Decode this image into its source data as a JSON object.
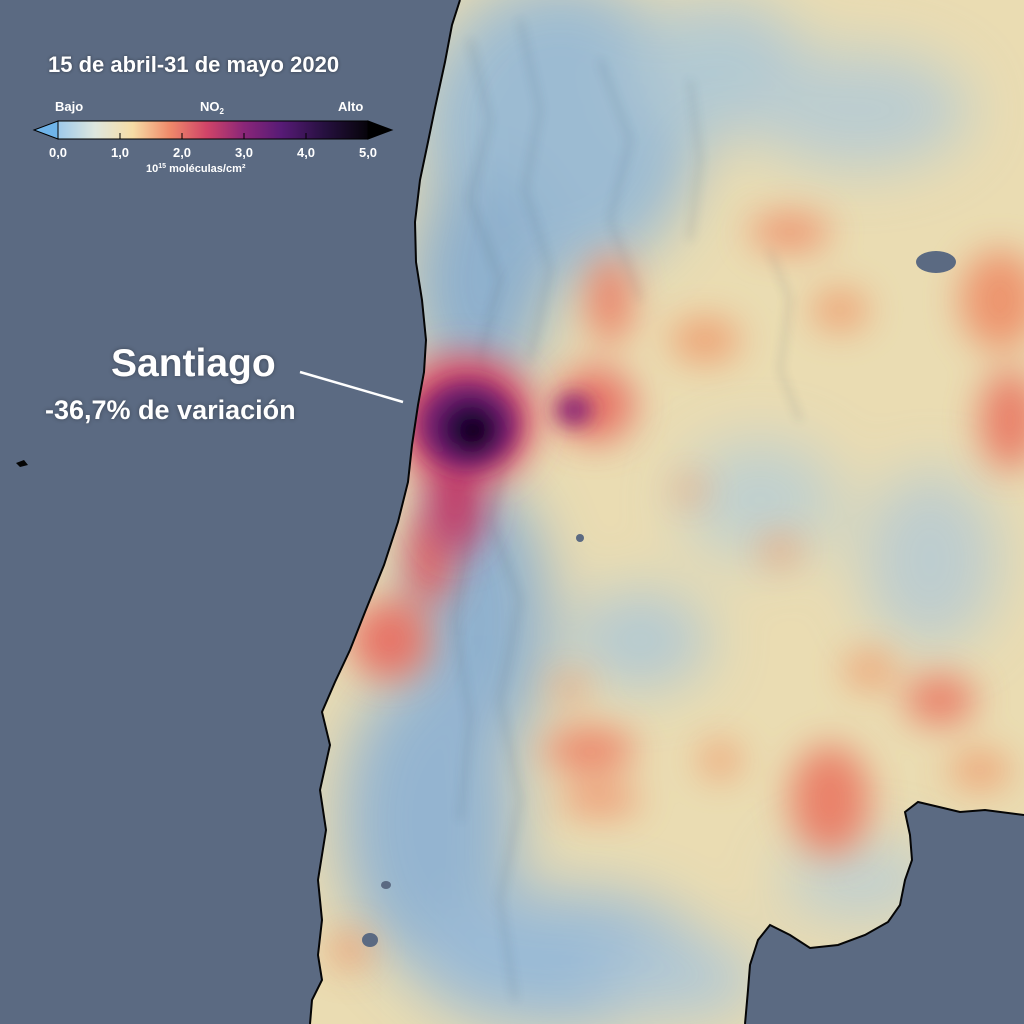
{
  "title": "15 de abril-31 de mayo 2020",
  "legend": {
    "low_label": "Bajo",
    "high_label": "Alto",
    "variable": "NO",
    "variable_subscript": "2",
    "ticks": [
      "0,0",
      "1,0",
      "2,0",
      "3,0",
      "4,0",
      "5,0"
    ],
    "tick_values": [
      0,
      1,
      2,
      3,
      4,
      5
    ],
    "range": [
      0,
      5
    ],
    "units_base": "10",
    "units_exponent": "15",
    "units_text": " moléculas/cm²",
    "colors": [
      "#5aa7e3",
      "#a6cbe3",
      "#f1e2b6",
      "#f3a070",
      "#e0505d",
      "#a22b78",
      "#5a1b78",
      "#2a0e45",
      "#050308"
    ]
  },
  "annotation": {
    "city": "Santiago",
    "change": "-36,7% de variación"
  },
  "colors": {
    "ocean": "#5b6a82",
    "land_base": "#eadcb2",
    "text": "#ffffff"
  }
}
